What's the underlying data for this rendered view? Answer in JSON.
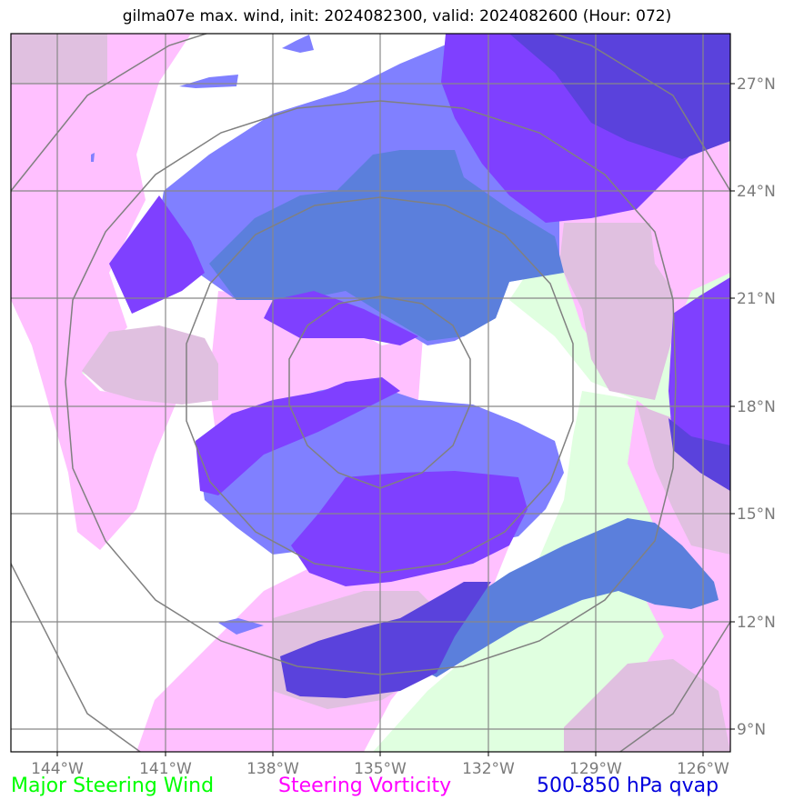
{
  "title": "gilma07e max. wind, init: 2024082300, valid: 2024082600 (Hour: 072)",
  "axes": {
    "longitude_labels": [
      "144°W",
      "141°W",
      "138°W",
      "135°W",
      "132°W",
      "129°W",
      "126°W"
    ],
    "latitude_labels": [
      "27°N",
      "24°N",
      "21°N",
      "18°N",
      "15°N",
      "12°N",
      "9°N"
    ]
  },
  "legend": [
    {
      "label": "Major Steering Wind",
      "color": "#00ff00"
    },
    {
      "label": "Steering Vorticity",
      "color": "#ff00ff"
    },
    {
      "label": "500-850 hPa qvap",
      "color": "#0000dd"
    }
  ],
  "layers": {
    "wind_color": "#e0ffe0",
    "vorticity_color": "#ffc0ff",
    "overlap_color": "#e0c0e0",
    "qvap_light": "#8080ff",
    "qvap_mid": "#5b7fdc",
    "qvap_dark": "#7f40ff",
    "qvap_darkest": "#5a42dc"
  }
}
